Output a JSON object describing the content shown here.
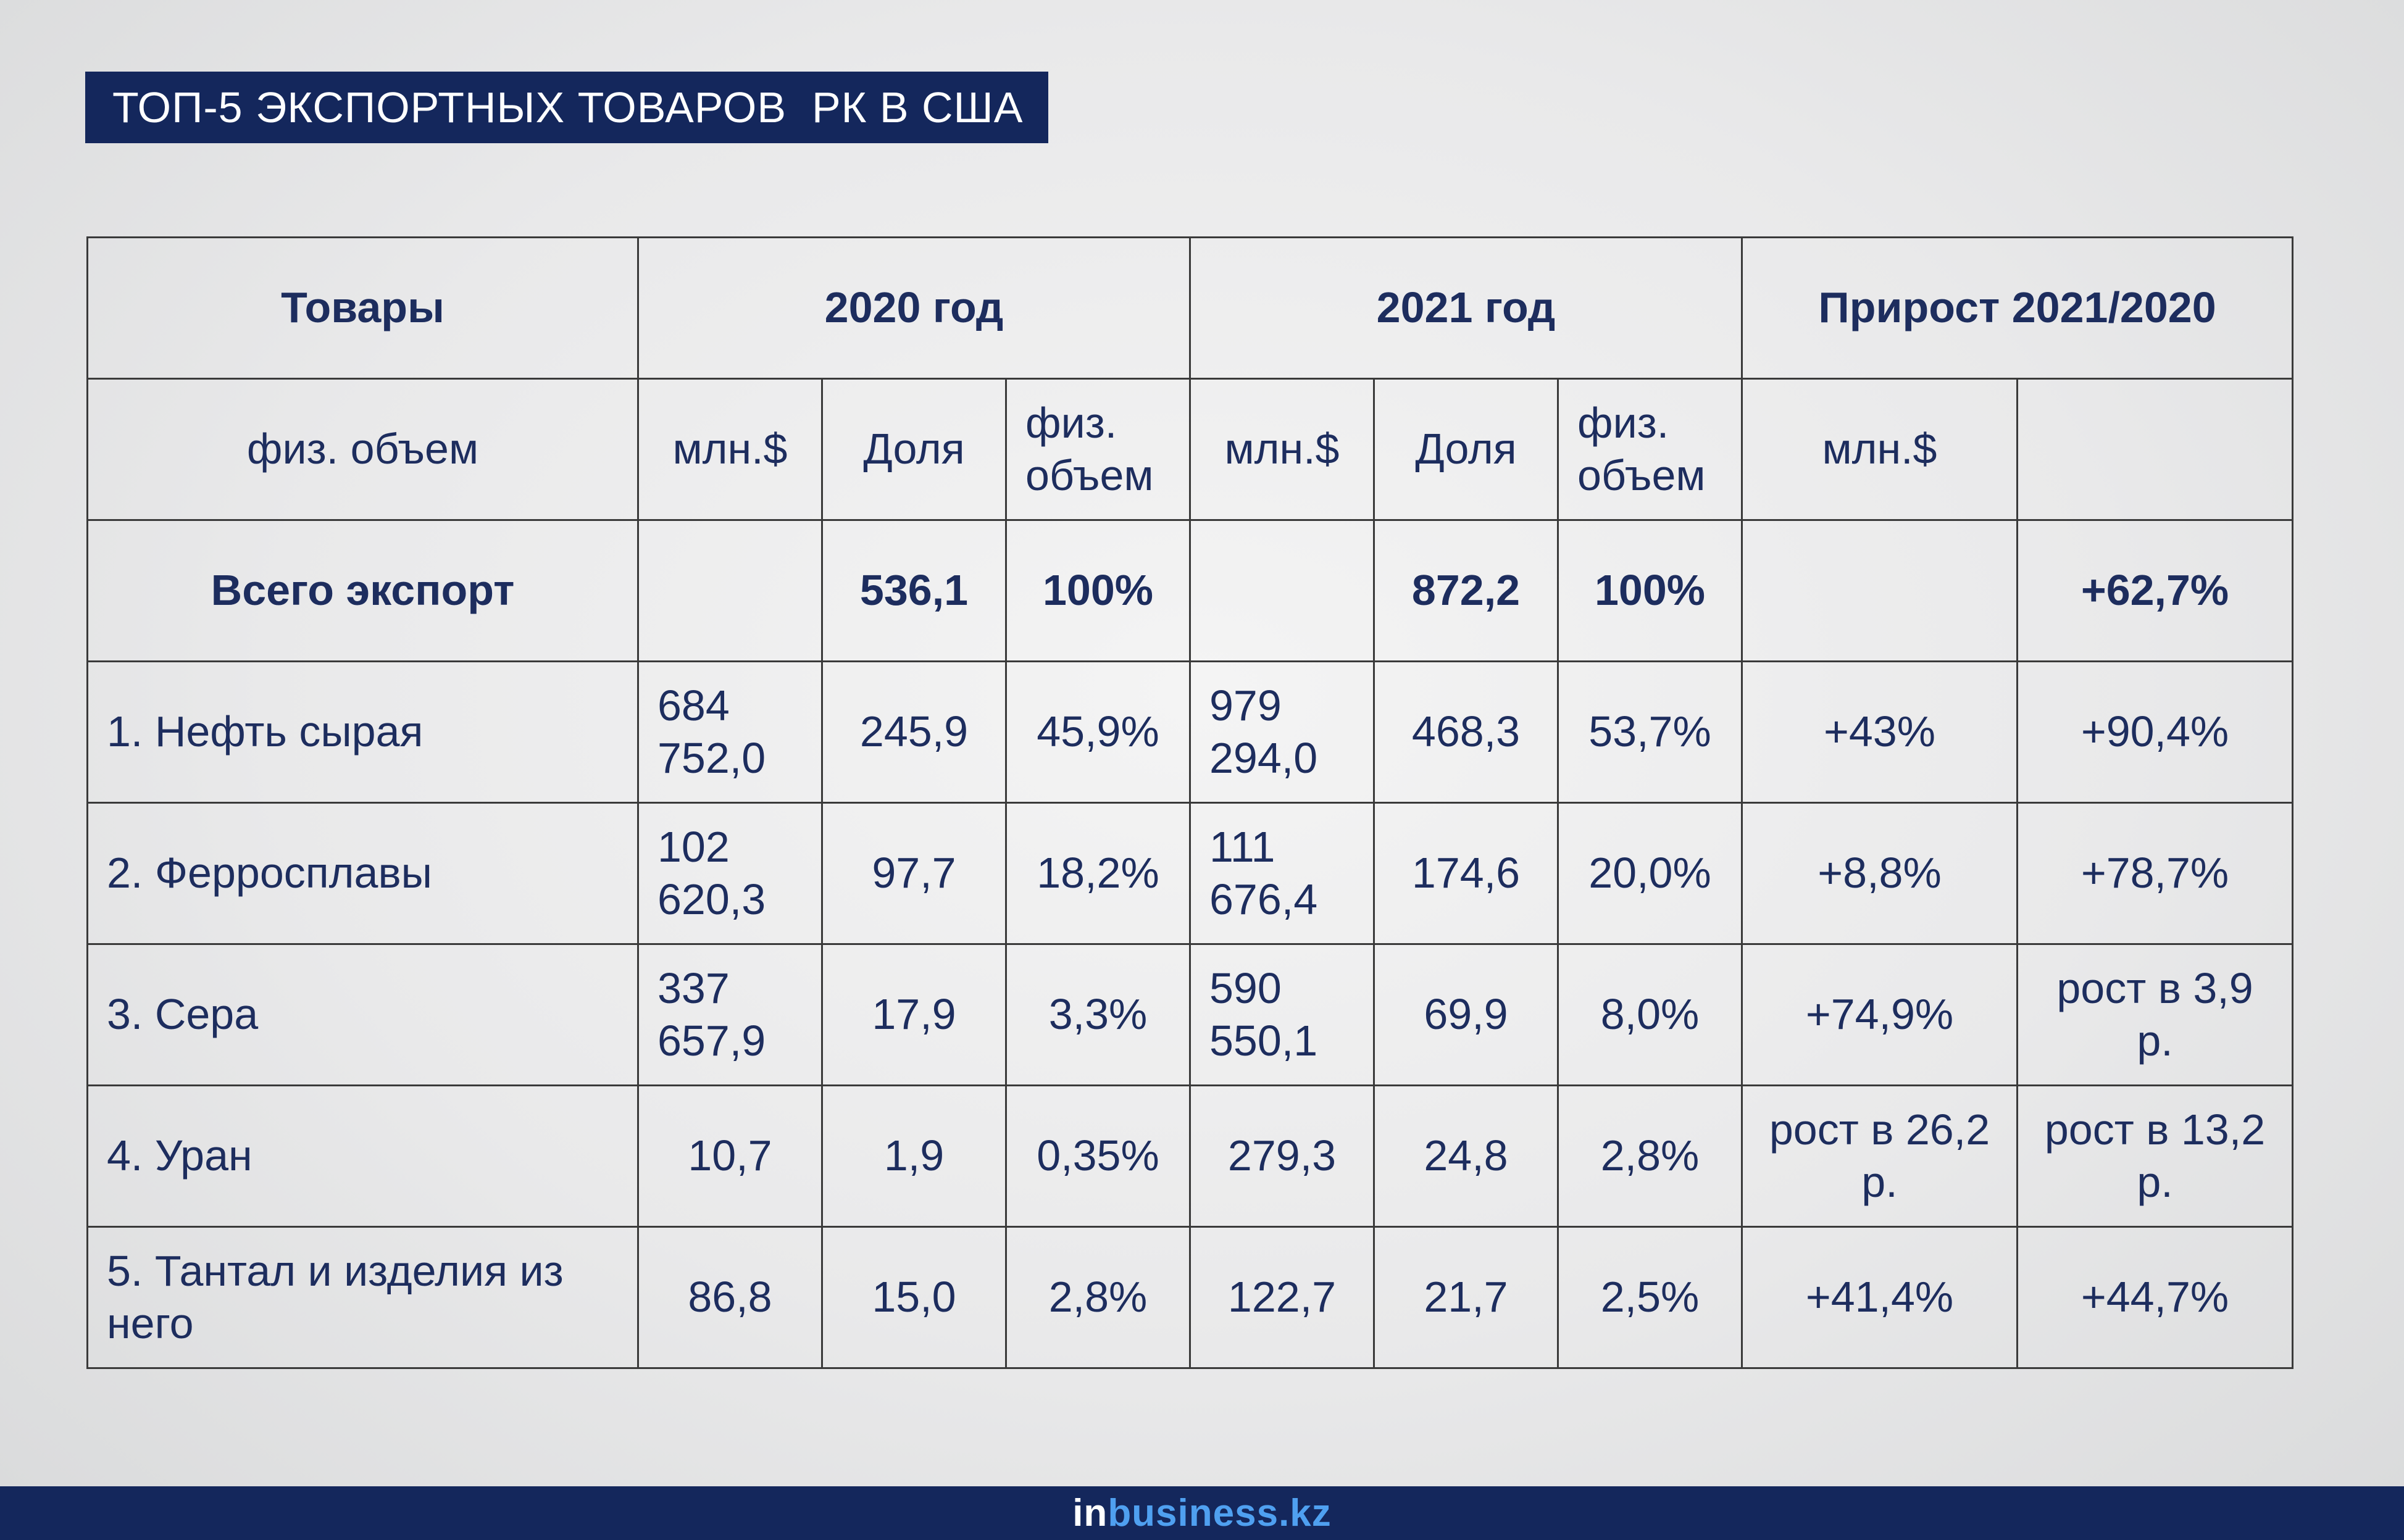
{
  "title": "ТОП-5 ЭКСПОРТНЫХ ТОВАРОВ  РК В США",
  "header": {
    "goods": "Товары",
    "y2020": "2020 год",
    "y2021": "2021 год",
    "growth": "Прирост 2021/2020"
  },
  "subheader": {
    "goods": "физ. объем",
    "c1": "млн.$",
    "c2": "Доля",
    "c3": "физ. объем",
    "c4": "млн.$",
    "c5": "Доля",
    "c6": "физ. объем",
    "c7": "млн.$",
    "c8": ""
  },
  "total": {
    "label": "Всего экспорт",
    "c1": "",
    "c2": "536,1",
    "c3": "100%",
    "c4": "",
    "c5": "872,2",
    "c6": "100%",
    "c7": "",
    "c8": "+62,7%"
  },
  "rows": [
    {
      "name": "1. Нефть сырая",
      "c1": "684 752,0",
      "c2": "245,9",
      "c3": "45,9%",
      "c4": "979 294,0",
      "c5": "468,3",
      "c6": "53,7%",
      "c7": "+43%",
      "c8": "+90,4%"
    },
    {
      "name": "2. Ферросплавы",
      "c1": "102 620,3",
      "c2": "97,7",
      "c3": "18,2%",
      "c4": "111 676,4",
      "c5": "174,6",
      "c6": "20,0%",
      "c7": "+8,8%",
      "c8": "+78,7%"
    },
    {
      "name": "3. Сера",
      "c1": "337 657,9",
      "c2": "17,9",
      "c3": "3,3%",
      "c4": "590 550,1",
      "c5": "69,9",
      "c6": "8,0%",
      "c7": "+74,9%",
      "c8": "рост в 3,9 р."
    },
    {
      "name": "4. Уран",
      "c1": "10,7",
      "c2": "1,9",
      "c3": "0,35%",
      "c4": "279,3",
      "c5": "24,8",
      "c6": "2,8%",
      "c7": "рост в 26,2 р.",
      "c8": "рост в 13,2 р."
    },
    {
      "name": "5. Тантал и изделия из него",
      "c1": "86,8",
      "c2": "15,0",
      "c3": "2,8%",
      "c4": "122,7",
      "c5": "21,7",
      "c6": "2,5%",
      "c7": "+41,4%",
      "c8": "+44,7%"
    }
  ],
  "footer": {
    "logo_in": "in",
    "logo_rest": "business.kz"
  },
  "colors": {
    "navy": "#14275c",
    "text": "#1d2d5e",
    "logo_accent": "#4fa0f0"
  }
}
